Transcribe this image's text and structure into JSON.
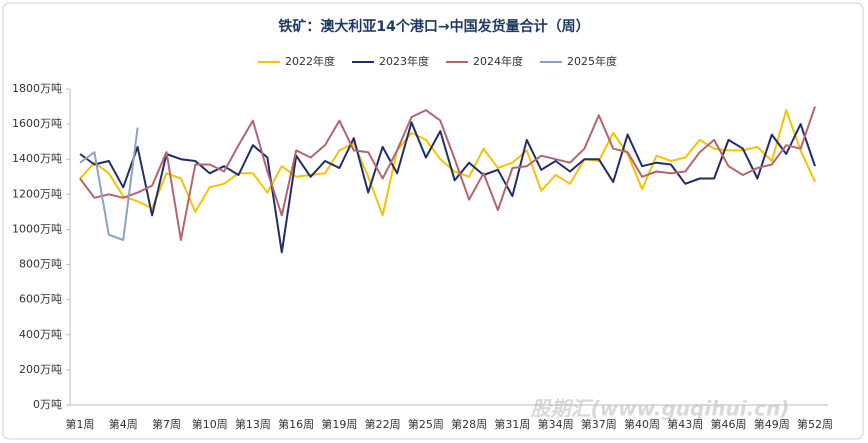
{
  "chart_data": {
    "type": "line",
    "title": "铁矿：澳大利亚14个港口→中国发货量合计（周）",
    "watermark": "股期汇(www.guqihui.cn)",
    "categories": [
      "第1周",
      null,
      null,
      "第4周",
      null,
      null,
      "第7周",
      null,
      null,
      "第10周",
      null,
      null,
      "第13周",
      null,
      null,
      "第16周",
      null,
      null,
      "第19周",
      null,
      null,
      "第22周",
      null,
      null,
      "第25周",
      null,
      null,
      "第28周",
      null,
      null,
      "第31周",
      null,
      null,
      "第34周",
      null,
      null,
      "第37周",
      null,
      null,
      "第40周",
      null,
      null,
      "第43周",
      null,
      null,
      "第46周",
      null,
      null,
      "第49周",
      null,
      null,
      "第52周"
    ],
    "series": [
      {
        "name": "2022年度",
        "color": "#f5c400",
        "values": [
          1290,
          1380,
          1320,
          1190,
          1160,
          1120,
          1320,
          1290,
          1100,
          1240,
          1260,
          1320,
          1320,
          1210,
          1360,
          1300,
          1310,
          1320,
          1450,
          1490,
          1300,
          1080,
          1450,
          1550,
          1510,
          1400,
          1330,
          1300,
          1460,
          1350,
          1380,
          1450,
          1220,
          1310,
          1260,
          1400,
          1390,
          1550,
          1430,
          1230,
          1420,
          1390,
          1410,
          1510,
          1460,
          1450,
          1450,
          1470,
          1390,
          1680,
          1450,
          1270
        ]
      },
      {
        "name": "2023年度",
        "color": "#1f2d6b",
        "values": [
          1430,
          1370,
          1390,
          1240,
          1470,
          1080,
          1430,
          1400,
          1390,
          1320,
          1360,
          1310,
          1480,
          1410,
          870,
          1420,
          1300,
          1390,
          1350,
          1520,
          1210,
          1470,
          1320,
          1610,
          1410,
          1560,
          1280,
          1380,
          1310,
          1340,
          1190,
          1510,
          1340,
          1390,
          1330,
          1400,
          1400,
          1270,
          1540,
          1360,
          1380,
          1370,
          1260,
          1290,
          1290,
          1510,
          1460,
          1290,
          1540,
          1430,
          1600,
          1360
        ]
      },
      {
        "name": "2024年度",
        "color": "#b5646e",
        "values": [
          1290,
          1180,
          1200,
          1180,
          1210,
          1250,
          1440,
          940,
          1370,
          1370,
          1330,
          1480,
          1620,
          1330,
          1080,
          1450,
          1410,
          1480,
          1620,
          1450,
          1440,
          1290,
          1450,
          1640,
          1680,
          1620,
          1400,
          1170,
          1320,
          1110,
          1350,
          1360,
          1420,
          1400,
          1380,
          1460,
          1650,
          1460,
          1440,
          1300,
          1330,
          1320,
          1330,
          1440,
          1510,
          1360,
          1310,
          1350,
          1370,
          1480,
          1460,
          1700
        ]
      },
      {
        "name": "2025年度",
        "color": "#8ea2c0",
        "values": [
          1380,
          1440,
          970,
          940,
          1580,
          null,
          null,
          null,
          null,
          null,
          null,
          null,
          null,
          null,
          null,
          null,
          null,
          null,
          null,
          null,
          null,
          null,
          null,
          null,
          null,
          null,
          null,
          null,
          null,
          null,
          null,
          null,
          null,
          null,
          null,
          null,
          null,
          null,
          null,
          null,
          null,
          null,
          null,
          null,
          null,
          null,
          null,
          null,
          null,
          null,
          null,
          null
        ]
      }
    ],
    "ylim": [
      0,
      1800
    ],
    "yticks": [
      {
        "value": 0,
        "label": "0万吨"
      },
      {
        "value": 200,
        "label": "200万吨"
      },
      {
        "value": 400,
        "label": "400万吨"
      },
      {
        "value": 600,
        "label": "600万吨"
      },
      {
        "value": 800,
        "label": "800万吨"
      },
      {
        "value": 1000,
        "label": "1000万吨"
      },
      {
        "value": 1200,
        "label": "1200万吨"
      },
      {
        "value": 1400,
        "label": "1400万吨"
      },
      {
        "value": 1600,
        "label": "1600万吨"
      },
      {
        "value": 1800,
        "label": "1800万吨"
      }
    ],
    "legend": "top"
  }
}
